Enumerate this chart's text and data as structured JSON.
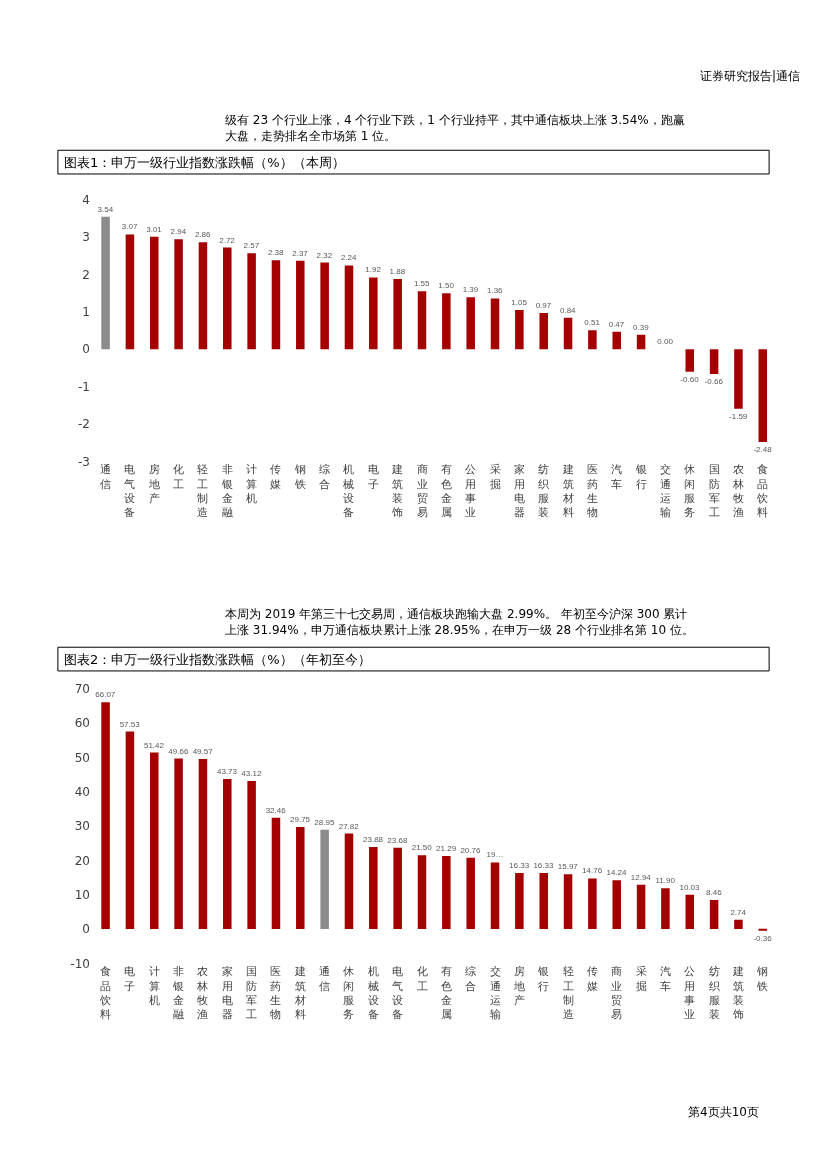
{
  "chart_data": [
    {
      "type": "bar",
      "title": "图表1：申万一级行业指数涨跌幅（%）（本周）",
      "annotations": [
        "证券研究报告|通信",
        "级有 23 个行业上涨，4 个行业下跌，1 个行业持平，其中通信板块上涨 3.54%，跑赢大盘，走势排名全市场第 1 位。"
      ],
      "categories": [
        "通信",
        "电气设备",
        "房地产",
        "化工",
        "轻工制造",
        "非银金融",
        "计算机",
        "传媒",
        "钢铁",
        "综合",
        "机械设备",
        "电子",
        "建筑装饰",
        "商业贸易",
        "有色金属",
        "公用事业",
        "采掘",
        "家用电器",
        "纺织服装",
        "建筑材料",
        "医药生物",
        "汽车",
        "银行",
        "交通运输",
        "休闲服务",
        "国防军工",
        "农林牧渔",
        "食品饮料"
      ],
      "values": [
        3.54,
        3.07,
        3.01,
        2.94,
        2.86,
        2.72,
        2.57,
        2.38,
        2.37,
        2.32,
        2.24,
        1.92,
        1.88,
        1.55,
        1.5,
        1.39,
        1.36,
        1.05,
        0.97,
        0.84,
        0.51,
        0.47,
        0.39,
        0.0,
        -0.6,
        -0.66,
        -1.59,
        -2.48
      ],
      "colors": [
        "#8c8c8c",
        "#a50000",
        "#a50000",
        "#a50000",
        "#a50000",
        "#a50000",
        "#a50000",
        "#a50000",
        "#a50000",
        "#a50000",
        "#a50000",
        "#a50000",
        "#a50000",
        "#a50000",
        "#a50000",
        "#a50000",
        "#a50000",
        "#a50000",
        "#a50000",
        "#a50000",
        "#a50000",
        "#a50000",
        "#a50000",
        "#a50000",
        "#a50000",
        "#a50000",
        "#a50000",
        "#a50000"
      ],
      "value_labels": [
        "3.54",
        "3.07",
        "3.01",
        "2.94",
        "2.86",
        "2.72",
        "2.57",
        "2.38",
        "2.37",
        "2.32",
        "2.24",
        "1.92",
        "1.88",
        "1.55",
        "1.50",
        "1.39",
        "1.36",
        "1.05",
        "0.97",
        "0.84",
        "0.51",
        "0.47",
        "0.39",
        "0.00",
        "-0.60",
        "-0.66",
        "-1.59",
        "-2.48"
      ],
      "ylim": [
        -3,
        4
      ],
      "yticks": [
        -3,
        -2,
        -1,
        0,
        1,
        2,
        3,
        4
      ]
    },
    {
      "type": "bar",
      "title": "图表2：申万一级行业指数涨跌幅（%）（年初至今）",
      "annotations": [
        "本周为 2019 年第三十七交易周，通信板块跑输大盘 2.99%。 年初至今沪深 300 累计上涨 31.94%，申万通信板块累计上涨 28.95%，在申万一级 28 个行业排名第 10 位。",
        "第4页共10页"
      ],
      "categories": [
        "食品饮料",
        "电子",
        "计算机",
        "非银金融",
        "农林牧渔",
        "家用电器",
        "国防军工",
        "医药生物",
        "建筑材料",
        "通信",
        "休闲服务",
        "机械设备",
        "电气设备",
        "化工",
        "有色金属",
        "综合",
        "交通运输",
        "房地产",
        "银行",
        "轻工制造",
        "传媒",
        "商业贸易",
        "采掘",
        "汽车",
        "公用事业",
        "纺织服装",
        "建筑装饰",
        "钢铁"
      ],
      "values": [
        66.07,
        57.53,
        51.42,
        49.66,
        49.57,
        43.73,
        43.12,
        32.46,
        29.75,
        28.95,
        27.82,
        23.88,
        23.68,
        21.5,
        21.29,
        20.76,
        19.4,
        16.33,
        16.33,
        15.97,
        14.76,
        14.24,
        12.94,
        11.9,
        10.03,
        8.46,
        2.74,
        -0.36
      ],
      "colors": [
        "#a50000",
        "#a50000",
        "#a50000",
        "#a50000",
        "#a50000",
        "#a50000",
        "#a50000",
        "#a50000",
        "#a50000",
        "#8c8c8c",
        "#a50000",
        "#a50000",
        "#a50000",
        "#a50000",
        "#a50000",
        "#a50000",
        "#a50000",
        "#a50000",
        "#a50000",
        "#a50000",
        "#a50000",
        "#a50000",
        "#a50000",
        "#a50000",
        "#a50000",
        "#a50000",
        "#a50000",
        "#a50000"
      ],
      "value_labels": [
        "66.07",
        "57.53",
        "51.42",
        "49.66",
        "49.57",
        "43.73",
        "43.12",
        "32.46",
        "29.75",
        "28.95",
        "27.82",
        "23.88",
        "23.68",
        "21.50",
        "21.29",
        "20.76",
        "19…",
        "16.33",
        "16.33",
        "15.97",
        "14.76",
        "14.24",
        "12.94",
        "11.90",
        "10.03",
        "8.46",
        "2.74",
        "-0.36"
      ],
      "ylim": [
        -10,
        70
      ],
      "yticks": [
        -10,
        0,
        10,
        20,
        30,
        40,
        50,
        60,
        70
      ]
    }
  ]
}
